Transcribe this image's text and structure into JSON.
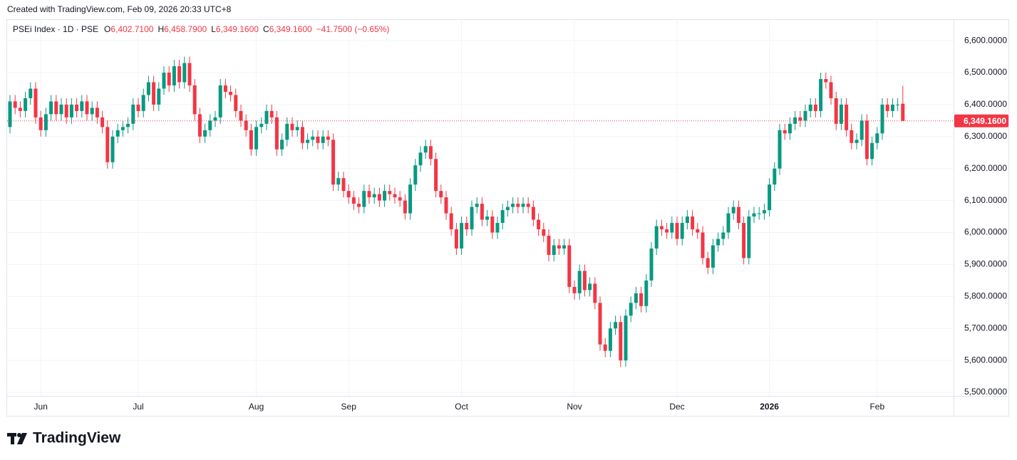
{
  "top_caption": "Created with TradingView.com, Feb 09, 2026 20:33 UTC+8",
  "brand": "TradingView",
  "chart_data": {
    "type": "candlestick",
    "title": "PSEi Index · 1D · PSE",
    "ohlc_legend": [
      {
        "label": "O",
        "value": "6,402.7100"
      },
      {
        "label": "H",
        "value": "6,458.7900"
      },
      {
        "label": "L",
        "value": "6,349.1600"
      },
      {
        "label": "C",
        "value": "6,349.1600"
      }
    ],
    "change": "−41.7500 (−0.65%)",
    "up_color": "#089981",
    "down_color": "#f23645",
    "grid": true,
    "categories": [
      null,
      null,
      null,
      null,
      null,
      null,
      "Jun",
      null,
      null,
      null,
      null,
      null,
      null,
      null,
      null,
      null,
      null,
      null,
      null,
      null,
      null,
      null,
      null,
      null,
      null,
      "Jul",
      null,
      null,
      null,
      null,
      null,
      null,
      null,
      null,
      null,
      null,
      null,
      null,
      null,
      null,
      null,
      null,
      null,
      null,
      null,
      null,
      null,
      null,
      "Aug",
      null,
      null,
      null,
      null,
      null,
      null,
      null,
      null,
      null,
      null,
      null,
      null,
      null,
      null,
      null,
      null,
      null,
      "Sep",
      null,
      null,
      null,
      null,
      null,
      null,
      null,
      null,
      null,
      null,
      null,
      null,
      null,
      null,
      null,
      null,
      null,
      null,
      null,
      null,
      null,
      "Oct",
      null,
      null,
      null,
      null,
      null,
      null,
      null,
      null,
      null,
      null,
      null,
      null,
      null,
      null,
      null,
      null,
      null,
      null,
      null,
      null,
      null,
      "Nov",
      null,
      null,
      null,
      null,
      null,
      null,
      null,
      null,
      null,
      null,
      null,
      null,
      null,
      null,
      null,
      null,
      null,
      null,
      null,
      "Dec",
      null,
      null,
      null,
      null,
      null,
      null,
      null,
      null,
      null,
      null,
      null,
      null,
      null,
      null,
      null,
      null,
      null,
      "2026",
      null,
      null,
      null,
      null,
      null,
      null,
      null,
      null,
      null,
      null,
      null,
      null,
      null,
      null,
      null,
      null,
      null,
      null,
      null,
      null,
      "Feb",
      null,
      null,
      null,
      null,
      null
    ],
    "open": [
      6330,
      6410,
      6390,
      6380,
      6420,
      6450,
      6360,
      6320,
      6370,
      6410,
      6370,
      6400,
      6360,
      6400,
      6380,
      6410,
      6370,
      6390,
      6360,
      6330,
      6220,
      6300,
      6320,
      6330,
      6340,
      6400,
      6380,
      6430,
      6470,
      6400,
      6450,
      6500,
      6460,
      6520,
      6470,
      6530,
      6460,
      6370,
      6300,
      6320,
      6350,
      6360,
      6460,
      6440,
      6430,
      6380,
      6350,
      6320,
      6260,
      6330,
      6340,
      6380,
      6360,
      6260,
      6290,
      6340,
      6320,
      6330,
      6280,
      6290,
      6300,
      6280,
      6300,
      6290,
      6150,
      6170,
      6130,
      6110,
      6090,
      6080,
      6130,
      6110,
      6120,
      6100,
      6130,
      6120,
      6110,
      6100,
      6060,
      6150,
      6210,
      6250,
      6270,
      6230,
      6130,
      6110,
      6060,
      6010,
      5950,
      6030,
      6010,
      6080,
      6090,
      6040,
      6050,
      6000,
      6030,
      6070,
      6080,
      6090,
      6080,
      6090,
      6080,
      6040,
      6010,
      5990,
      5930,
      5960,
      5950,
      5960,
      5830,
      5810,
      5880,
      5820,
      5840,
      5780,
      5650,
      5630,
      5700,
      5720,
      5600,
      5740,
      5780,
      5810,
      5770,
      5850,
      5950,
      6020,
      6010,
      6000,
      6030,
      5980,
      6030,
      6050,
      6010,
      6000,
      5920,
      5890,
      5960,
      5980,
      6000,
      6060,
      6080,
      6030,
      5920,
      6050,
      6060,
      6060,
      6070,
      6150,
      6200,
      6320,
      6310,
      6340,
      6360,
      6350,
      6380,
      6400,
      6380,
      6480,
      6470,
      6420,
      6340,
      6400,
      6320,
      6280,
      6290,
      6350,
      6230,
      6280,
      6310,
      6400,
      6380,
      6400,
      6402.71
    ],
    "high": [
      6430,
      6430,
      6410,
      6440,
      6470,
      6470,
      6380,
      6390,
      6430,
      6430,
      6420,
      6420,
      6420,
      6420,
      6430,
      6430,
      6410,
      6410,
      6380,
      6350,
      6320,
      6340,
      6350,
      6360,
      6420,
      6420,
      6450,
      6490,
      6490,
      6470,
      6520,
      6520,
      6540,
      6540,
      6550,
      6550,
      6480,
      6390,
      6340,
      6370,
      6380,
      6480,
      6480,
      6460,
      6450,
      6400,
      6370,
      6340,
      6350,
      6360,
      6400,
      6400,
      6380,
      6310,
      6360,
      6360,
      6350,
      6350,
      6310,
      6320,
      6320,
      6320,
      6320,
      6310,
      6190,
      6190,
      6150,
      6130,
      6110,
      6150,
      6150,
      6140,
      6140,
      6150,
      6150,
      6140,
      6130,
      6120,
      6170,
      6230,
      6270,
      6290,
      6290,
      6250,
      6150,
      6130,
      6080,
      6030,
      6050,
      6050,
      6100,
      6110,
      6110,
      6070,
      6070,
      6050,
      6090,
      6100,
      6110,
      6110,
      6110,
      6110,
      6100,
      6060,
      6030,
      6010,
      5980,
      5980,
      5980,
      5980,
      5850,
      5900,
      5900,
      5860,
      5860,
      5800,
      5670,
      5720,
      5740,
      5740,
      5760,
      5800,
      5830,
      5830,
      5870,
      5970,
      6040,
      6040,
      6030,
      6050,
      6050,
      6050,
      6070,
      6070,
      6030,
      6020,
      5940,
      5980,
      6000,
      6020,
      6080,
      6100,
      6100,
      6050,
      6070,
      6080,
      6080,
      6090,
      6170,
      6220,
      6340,
      6340,
      6360,
      6380,
      6380,
      6400,
      6420,
      6420,
      6500,
      6500,
      6490,
      6440,
      6420,
      6420,
      6340,
      6310,
      6370,
      6370,
      6300,
      6330,
      6420,
      6420,
      6420,
      6420,
      6458.79
    ],
    "low": [
      6310,
      6370,
      6360,
      6360,
      6400,
      6340,
      6300,
      6300,
      6350,
      6350,
      6350,
      6340,
      6340,
      6360,
      6360,
      6350,
      6350,
      6340,
      6310,
      6200,
      6200,
      6280,
      6300,
      6310,
      6320,
      6360,
      6360,
      6410,
      6380,
      6380,
      6430,
      6440,
      6440,
      6450,
      6450,
      6440,
      6350,
      6280,
      6280,
      6300,
      6330,
      6340,
      6420,
      6410,
      6360,
      6330,
      6300,
      6240,
      6240,
      6310,
      6320,
      6340,
      6240,
      6240,
      6270,
      6300,
      6300,
      6260,
      6260,
      6270,
      6260,
      6260,
      6270,
      6130,
      6130,
      6110,
      6090,
      6070,
      6060,
      6060,
      6090,
      6090,
      6080,
      6080,
      6100,
      6090,
      6080,
      6040,
      6040,
      6130,
      6190,
      6230,
      6210,
      6110,
      6090,
      6040,
      5990,
      5930,
      5930,
      5990,
      5990,
      6060,
      6020,
      6020,
      5980,
      5980,
      6010,
      6050,
      6060,
      6060,
      6060,
      6060,
      6020,
      5990,
      5970,
      5910,
      5910,
      5930,
      5930,
      5810,
      5790,
      5790,
      5800,
      5800,
      5760,
      5630,
      5610,
      5610,
      5680,
      5580,
      5580,
      5720,
      5760,
      5750,
      5750,
      5830,
      5930,
      5990,
      5980,
      5980,
      5960,
      5960,
      6010,
      5990,
      5980,
      5900,
      5870,
      5870,
      5940,
      5960,
      5980,
      6040,
      6010,
      5900,
      5900,
      6030,
      6040,
      6040,
      6050,
      6130,
      6180,
      6290,
      6290,
      6320,
      6330,
      6330,
      6360,
      6360,
      6360,
      6450,
      6400,
      6320,
      6320,
      6300,
      6260,
      6260,
      6270,
      6210,
      6210,
      6260,
      6290,
      6360,
      6360,
      6380,
      6349.16
    ],
    "close": [
      6410,
      6390,
      6380,
      6420,
      6450,
      6360,
      6320,
      6370,
      6410,
      6370,
      6400,
      6360,
      6400,
      6380,
      6410,
      6370,
      6390,
      6360,
      6330,
      6220,
      6300,
      6320,
      6330,
      6340,
      6400,
      6380,
      6430,
      6470,
      6400,
      6450,
      6500,
      6460,
      6520,
      6470,
      6530,
      6460,
      6370,
      6300,
      6320,
      6350,
      6360,
      6460,
      6440,
      6430,
      6380,
      6350,
      6320,
      6260,
      6330,
      6340,
      6380,
      6360,
      6260,
      6290,
      6340,
      6320,
      6330,
      6280,
      6290,
      6300,
      6280,
      6300,
      6290,
      6150,
      6170,
      6130,
      6110,
      6090,
      6080,
      6130,
      6110,
      6120,
      6100,
      6130,
      6120,
      6110,
      6100,
      6060,
      6150,
      6210,
      6250,
      6270,
      6230,
      6130,
      6110,
      6060,
      6010,
      5950,
      6030,
      6010,
      6080,
      6090,
      6040,
      6050,
      6000,
      6030,
      6070,
      6080,
      6090,
      6080,
      6090,
      6080,
      6040,
      6010,
      5990,
      5930,
      5960,
      5950,
      5960,
      5830,
      5810,
      5880,
      5820,
      5840,
      5780,
      5650,
      5630,
      5700,
      5720,
      5600,
      5740,
      5780,
      5810,
      5770,
      5850,
      5950,
      6020,
      6010,
      6000,
      6030,
      5980,
      6030,
      6050,
      6010,
      6000,
      5920,
      5890,
      5960,
      5980,
      6000,
      6060,
      6080,
      6030,
      5920,
      6050,
      6060,
      6060,
      6070,
      6150,
      6200,
      6320,
      6310,
      6340,
      6360,
      6350,
      6380,
      6400,
      6380,
      6480,
      6470,
      6420,
      6340,
      6400,
      6320,
      6280,
      6290,
      6350,
      6230,
      6280,
      6310,
      6400,
      6380,
      6400,
      6400,
      6349.16
    ],
    "ylim": [
      5489,
      6667
    ],
    "yticks": [
      {
        "value": 5500,
        "label": "5,500.0000"
      },
      {
        "value": 5600,
        "label": "5,600.0000"
      },
      {
        "value": 5700,
        "label": "5,700.0000"
      },
      {
        "value": 5800,
        "label": "5,800.0000"
      },
      {
        "value": 5900,
        "label": "5,900.0000"
      },
      {
        "value": 6000,
        "label": "6,000.0000"
      },
      {
        "value": 6100,
        "label": "6,100.0000"
      },
      {
        "value": 6200,
        "label": "6,200.0000"
      },
      {
        "value": 6300,
        "label": "6,300.0000"
      },
      {
        "value": 6400,
        "label": "6,400.0000"
      },
      {
        "value": 6500,
        "label": "6,500.0000"
      },
      {
        "value": 6600,
        "label": "6,600.0000"
      }
    ],
    "last_price": {
      "value": 6349.16,
      "label": "6,349.1600"
    }
  }
}
